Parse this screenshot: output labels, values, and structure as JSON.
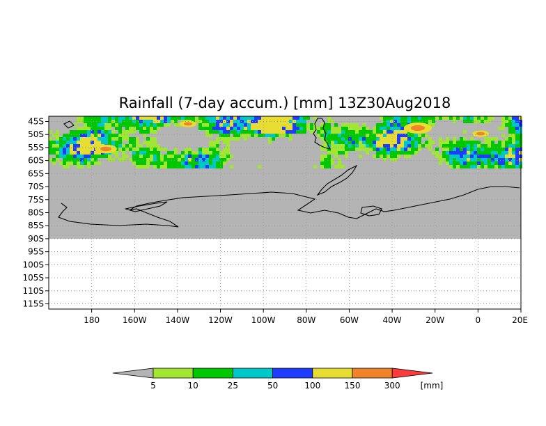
{
  "title": "Rainfall (7-day accum.) [mm] 13Z30Aug2018",
  "map": {
    "lon_range": [
      -200,
      20
    ],
    "lat_range": [
      -117,
      -43
    ],
    "lat_ticks": [
      "45S",
      "50S",
      "55S",
      "60S",
      "65S",
      "70S",
      "75S",
      "80S",
      "85S",
      "90S",
      "95S",
      "100S",
      "105S",
      "110S",
      "115S"
    ],
    "lon_ticks": [
      "180",
      "160W",
      "140W",
      "120W",
      "100W",
      "80W",
      "60W",
      "40W",
      "20W",
      "0",
      "20E"
    ],
    "data_extent_lat": [
      -90,
      -43
    ],
    "missing_color": "#b4b4b4",
    "grid": true
  },
  "colorbar": {
    "labels": [
      "5",
      "10",
      "25",
      "50",
      "100",
      "150",
      "300"
    ],
    "unit": "[mm]",
    "below_color": "#b4b4b4",
    "colors": [
      "#a0e632",
      "#00c800",
      "#00c8c8",
      "#1e3cff",
      "#e6dc32",
      "#f08228",
      "#fa3c3c"
    ]
  }
}
